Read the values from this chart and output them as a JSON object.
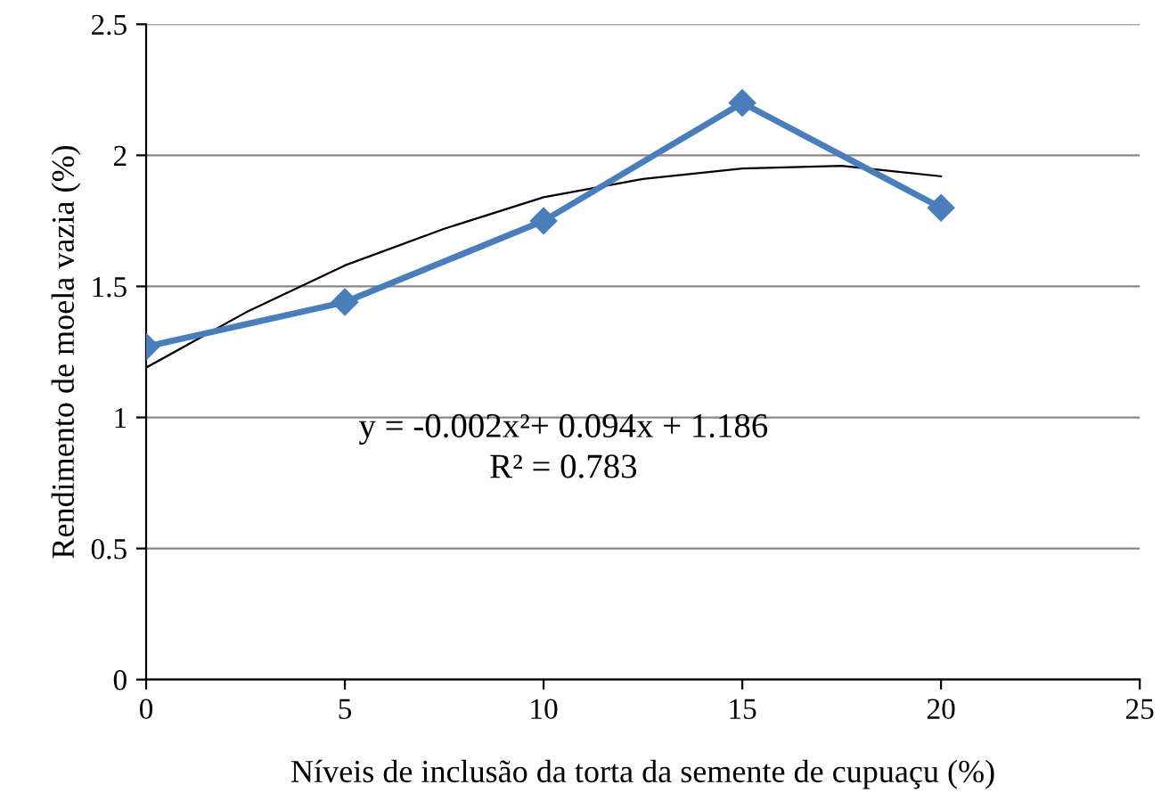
{
  "chart_data": {
    "type": "line",
    "xlabel": "Níveis de inclusão da torta da semente de cupuaçu (%)",
    "ylabel": "Rendimento de moela vazia (%)",
    "series": [
      {
        "x": [
          0,
          5,
          10,
          15,
          20
        ],
        "values": [
          1.27,
          1.44,
          1.75,
          2.2,
          1.8
        ],
        "color": "#4a7ebb",
        "marker": "diamond",
        "line_style": "solid"
      },
      {
        "x": [
          0,
          2.5,
          5,
          7.5,
          10,
          12.5,
          15,
          17.5,
          20
        ],
        "values": [
          1.19,
          1.4,
          1.58,
          1.72,
          1.84,
          1.91,
          1.95,
          1.96,
          1.92
        ],
        "color": "#000000",
        "marker": "none",
        "line_style": "solid"
      }
    ],
    "xlim": [
      0,
      25
    ],
    "xticks": [
      0,
      5,
      10,
      15,
      20,
      25
    ],
    "ylim": [
      0,
      2.5
    ],
    "yticks": [
      0,
      0.5,
      1,
      1.5,
      2,
      2.5
    ],
    "grid": "y",
    "legend": false,
    "annotations": [
      "y = -0.002x²+ 0.094x + 1.186",
      "R² = 0.783"
    ]
  }
}
